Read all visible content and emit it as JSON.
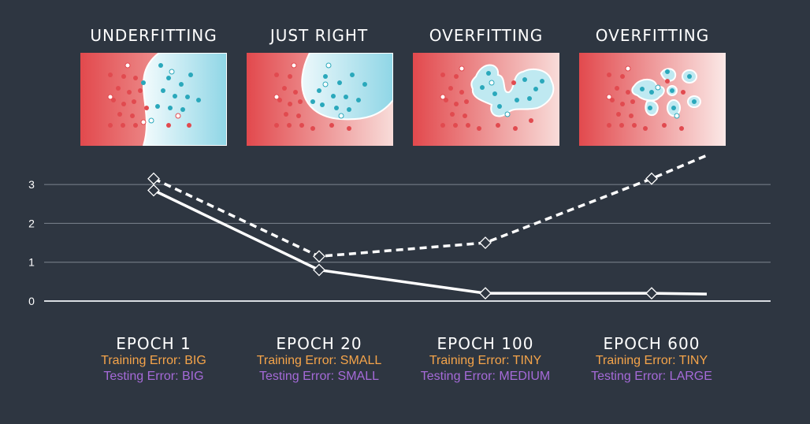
{
  "panels": [
    {
      "title": "UNDERFITTING"
    },
    {
      "title": "JUST RIGHT"
    },
    {
      "title": "OVERFITTING"
    },
    {
      "title": "OVERFITTING"
    }
  ],
  "colors": {
    "background": "#2e3641",
    "red_region": "#e15b5b",
    "blue_region": "#9fdbe7",
    "training_error": "#f5a44a",
    "testing_error": "#a56ad8",
    "line": "#ffffff"
  },
  "chart_data": {
    "type": "line",
    "x": [
      "EPOCH 1",
      "EPOCH 20",
      "EPOCH 100",
      "EPOCH 600"
    ],
    "yticks": [
      0,
      1,
      2,
      3
    ],
    "ylim": [
      0,
      3.9
    ],
    "grid": true,
    "series": [
      {
        "key": "testing",
        "style": "dashed",
        "markers": [
          3.15,
          1.15,
          1.5,
          3.15
        ],
        "end_value": 3.75
      },
      {
        "key": "training",
        "style": "solid",
        "markers": [
          2.85,
          0.8,
          0.2,
          0.2
        ],
        "end_value": 0.18
      }
    ]
  },
  "epochs": [
    {
      "label": "EPOCH 1",
      "training": "Training Error: BIG",
      "testing": "Testing Error: BIG"
    },
    {
      "label": "EPOCH 20",
      "training": "Training Error: SMALL",
      "testing": "Testing Error: SMALL"
    },
    {
      "label": "EPOCH 100",
      "training": "Training Error: TINY",
      "testing": "Testing Error: MEDIUM"
    },
    {
      "label": "EPOCH 600",
      "training": "Training Error: TINY",
      "testing": "Testing Error: LARGE"
    }
  ]
}
